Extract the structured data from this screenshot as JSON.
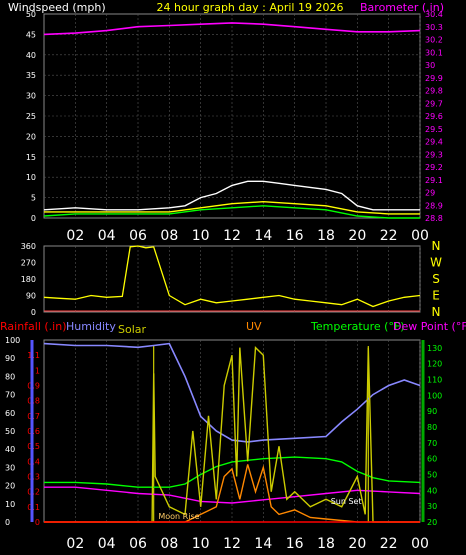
{
  "chart_data": [
    {
      "type": "line",
      "title": "24 hour graph day : April 19 2026",
      "ylabel_left": "Windspeed (mph)",
      "ylabel_right": "Barometer (.in)",
      "x_ticks": [
        "02",
        "04",
        "06",
        "08",
        "10",
        "12",
        "14",
        "16",
        "18",
        "20",
        "22",
        "00"
      ],
      "ylim_left": [
        0,
        50
      ],
      "yticks_left": [
        "0",
        "5",
        "10",
        "15",
        "20",
        "25",
        "30",
        "35",
        "40",
        "45",
        "50"
      ],
      "ylim_right": [
        28.8,
        30.4
      ],
      "yticks_right": [
        "28.8",
        "28.9",
        "29",
        "29.1",
        "29.2",
        "29.3",
        "29.4",
        "29.5",
        "29.6",
        "29.7",
        "29.8",
        "29.9",
        "30",
        "30.1",
        "30.2",
        "30.3",
        "30.4"
      ],
      "grid": true,
      "series": [
        {
          "color": "#ff00ff",
          "axis": "right",
          "x": [
            0,
            2,
            4,
            6,
            8,
            10,
            12,
            14,
            16,
            18,
            20,
            22,
            24
          ],
          "values": [
            30.24,
            30.25,
            30.27,
            30.3,
            30.31,
            30.32,
            30.33,
            30.32,
            30.3,
            30.28,
            30.26,
            30.26,
            30.27
          ]
        },
        {
          "color": "#ffffff",
          "axis": "left",
          "x": [
            0,
            2,
            4,
            6,
            8,
            9,
            10,
            11,
            12,
            13,
            14,
            15,
            16,
            17,
            18,
            19,
            20,
            21,
            22,
            24
          ],
          "values": [
            2,
            2.5,
            2,
            2,
            2.5,
            3,
            5,
            6,
            8,
            9,
            9,
            8.5,
            8,
            7.5,
            7,
            6,
            3,
            2,
            2,
            2
          ]
        },
        {
          "color": "#ffff00",
          "axis": "left",
          "x": [
            0,
            2,
            4,
            6,
            8,
            10,
            12,
            14,
            16,
            18,
            20,
            22,
            24
          ],
          "values": [
            1.5,
            1.5,
            1.5,
            1.5,
            1.5,
            2.5,
            3.5,
            4,
            3.5,
            3,
            1.5,
            1,
            1
          ]
        },
        {
          "color": "#00ff00",
          "axis": "left",
          "x": [
            0,
            2,
            4,
            6,
            8,
            10,
            12,
            14,
            16,
            18,
            20,
            22,
            24
          ],
          "values": [
            0.5,
            1,
            1,
            1,
            1,
            2,
            2.5,
            3,
            2.5,
            2,
            0.5,
            0,
            0
          ]
        }
      ]
    },
    {
      "type": "line",
      "ylabel_right": [
        "N",
        "W",
        "S",
        "E",
        "N"
      ],
      "ylim": [
        0,
        360
      ],
      "yticks": [
        "0",
        "90",
        "180",
        "270",
        "360"
      ],
      "x_ticks": [
        "02",
        "04",
        "06",
        "08",
        "10",
        "12",
        "14",
        "16",
        "18",
        "20",
        "22",
        "00"
      ],
      "series": [
        {
          "color": "#ffff00",
          "x": [
            0,
            1,
            2,
            3,
            4,
            5,
            5.5,
            6,
            6.5,
            7,
            8,
            9,
            10,
            11,
            12,
            13,
            14,
            15,
            16,
            17,
            18,
            19,
            20,
            21,
            22,
            23,
            24
          ],
          "values": [
            80,
            75,
            70,
            90,
            80,
            85,
            355,
            360,
            350,
            355,
            90,
            40,
            70,
            50,
            60,
            70,
            80,
            90,
            70,
            60,
            50,
            40,
            70,
            30,
            60,
            80,
            90
          ]
        }
      ]
    },
    {
      "type": "line",
      "legend": [
        {
          "name": "Rainfall (.in)",
          "color": "#ff0000"
        },
        {
          "name": "Humidity",
          "color": "#8888ff"
        },
        {
          "name": "Solar",
          "color": "#cccc00"
        },
        {
          "name": "UV",
          "color": "#ff8800"
        },
        {
          "name": "Temperature (°F)",
          "color": "#00ff00"
        },
        {
          "name": "Dew Point (°F)",
          "color": "#ff00ff"
        }
      ],
      "x_ticks": [
        "02",
        "04",
        "06",
        "08",
        "10",
        "12",
        "14",
        "16",
        "18",
        "20",
        "22",
        "00"
      ],
      "ylim_rain": [
        0,
        1.2
      ],
      "yticks_rain": [
        "0",
        "0.1",
        "0.2",
        "0.3",
        "0.4",
        "0.5",
        "0.6",
        "0.7",
        "0.8",
        "0.9",
        "1",
        "1.1"
      ],
      "ylim_humidity": [
        0,
        100
      ],
      "yticks_humidity": [
        "0",
        "10",
        "20",
        "30",
        "40",
        "50",
        "60",
        "70",
        "80",
        "90",
        "100"
      ],
      "ylim_temp": [
        20,
        135
      ],
      "yticks_temp": [
        "20",
        "30",
        "40",
        "50",
        "60",
        "70",
        "80",
        "90",
        "100",
        "110",
        "120",
        "130"
      ],
      "annotations": [
        "Moon Rise",
        "Sun Set"
      ],
      "series": [
        {
          "name": "Humidity",
          "color": "#8888ff",
          "axis": "humidity",
          "x": [
            0,
            2,
            4,
            6,
            7,
            8,
            9,
            10,
            11,
            12,
            13,
            14,
            16,
            18,
            19,
            20,
            21,
            22,
            23,
            24
          ],
          "values": [
            98,
            97,
            97,
            96,
            97,
            98,
            80,
            58,
            50,
            45,
            44,
            45,
            46,
            47,
            55,
            62,
            70,
            75,
            78,
            75
          ]
        },
        {
          "name": "Temperature (°F)",
          "color": "#00ff00",
          "axis": "temp",
          "x": [
            0,
            2,
            4,
            6,
            8,
            9,
            10,
            11,
            12,
            14,
            16,
            18,
            19,
            20,
            21,
            22,
            24
          ],
          "values": [
            45,
            45,
            44,
            42,
            42,
            44,
            50,
            55,
            58,
            60,
            61,
            60,
            58,
            52,
            48,
            46,
            45
          ]
        },
        {
          "name": "Dew Point (°F)",
          "color": "#ff00ff",
          "axis": "temp",
          "x": [
            0,
            2,
            4,
            6,
            8,
            10,
            12,
            14,
            16,
            18,
            20,
            22,
            24
          ],
          "values": [
            42,
            42,
            40,
            38,
            37,
            33,
            32,
            34,
            36,
            38,
            40,
            39,
            38
          ]
        },
        {
          "name": "Solar",
          "color": "#cccc00",
          "axis": "rain",
          "x": [
            0,
            5.5,
            6.9,
            7,
            7.1,
            8,
            9,
            9.5,
            10,
            10.5,
            11,
            11.5,
            12,
            12.3,
            12.5,
            13,
            13.5,
            14,
            14.5,
            15,
            15.5,
            16,
            17,
            18,
            19,
            20,
            20.5,
            20.7,
            21,
            24
          ],
          "values": [
            0,
            0,
            0,
            0.98,
            0.3,
            0.1,
            0.05,
            0.6,
            0.1,
            0.7,
            0.15,
            0.9,
            1.1,
            0.3,
            1.15,
            0.4,
            1.15,
            1.1,
            0.2,
            0.5,
            0.15,
            0.2,
            0.1,
            0.15,
            0.1,
            0.3,
            0.05,
            1.15,
            0,
            0
          ]
        },
        {
          "name": "UV",
          "color": "#ff8800",
          "axis": "rain",
          "x": [
            0,
            9,
            10,
            11,
            11.5,
            12,
            12.5,
            13,
            13.5,
            14,
            14.5,
            15,
            16,
            17,
            18,
            19,
            20,
            24
          ],
          "values": [
            0,
            0,
            0.05,
            0.1,
            0.3,
            0.35,
            0.15,
            0.38,
            0.2,
            0.36,
            0.1,
            0.05,
            0.08,
            0.03,
            0.02,
            0.01,
            0,
            0
          ]
        },
        {
          "name": "Rainfall (.in)",
          "color": "#ff0000",
          "axis": "rain",
          "x": [
            0,
            24
          ],
          "values": [
            0,
            0
          ]
        }
      ]
    }
  ]
}
